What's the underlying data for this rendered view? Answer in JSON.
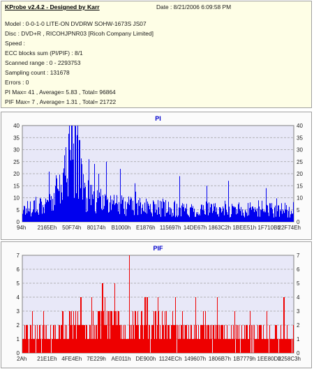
{
  "header": {
    "app_title": "KProbe v2.4.2 - Designed by Karr",
    "date": "Date : 8/21/2006 6:09:58 PM"
  },
  "info_lines": [
    "Model : 0-0-1-0 LITE-ON DVDRW SOHW-1673S JS07",
    "Disc : DVD+R , RICOHJPNR03 [Ricoh Company Limited]",
    "Speed :",
    "ECC blocks sum (PI/PIF) : 8/1",
    "Scanned range : 0 - 2293753",
    "Sampling count : 131678",
    "Errors : 0",
    "PI Max= 41 , Average= 5.83 , Total= 96864",
    "PIF Max= 7 , Average= 1.31 , Total= 21722"
  ],
  "colors": {
    "pi_series": "#0000ee",
    "pif_series": "#ee0000",
    "title": "#0000cc",
    "grid": "#a0a0a0",
    "plot_background": "#e8e8f8",
    "panel_background": "#fbfbfb",
    "info_background": "#fefee6"
  },
  "chart_data": [
    {
      "type": "bar",
      "title": "PI",
      "ylim": [
        0,
        40
      ],
      "yticks": [
        0,
        5,
        10,
        15,
        20,
        25,
        30,
        35,
        40
      ],
      "xticks": [
        "94h",
        "2165Eh",
        "50F74h",
        "80174h",
        "B1000h",
        "E1876h",
        "115697h",
        "14DE67h",
        "1863C2h",
        "1BEE51h",
        "1F710Bh",
        "22F74Eh"
      ],
      "grid": true,
      "max": 41,
      "average": 5.83,
      "total": 96864,
      "series_color": "#0000ee",
      "sample_count": 131678,
      "profile": [
        {
          "pos": 0.0,
          "level": 5
        },
        {
          "pos": 0.05,
          "level": 7
        },
        {
          "pos": 0.1,
          "level": 8
        },
        {
          "pos": 0.15,
          "level": 16
        },
        {
          "pos": 0.18,
          "level": 27
        },
        {
          "pos": 0.2,
          "level": 25
        },
        {
          "pos": 0.23,
          "level": 12
        },
        {
          "pos": 0.26,
          "level": 9
        },
        {
          "pos": 0.3,
          "level": 8
        },
        {
          "pos": 0.35,
          "level": 7
        },
        {
          "pos": 0.45,
          "level": 6
        },
        {
          "pos": 0.6,
          "level": 5
        },
        {
          "pos": 0.8,
          "level": 5
        },
        {
          "pos": 1.0,
          "level": 5
        }
      ],
      "peaks": [
        {
          "pos": 0.172,
          "value": 41
        },
        {
          "pos": 0.18,
          "value": 40
        },
        {
          "pos": 0.2,
          "value": 36
        },
        {
          "pos": 0.16,
          "value": 31
        },
        {
          "pos": 0.21,
          "value": 34
        },
        {
          "pos": 0.245,
          "value": 26
        },
        {
          "pos": 0.31,
          "value": 25
        },
        {
          "pos": 0.36,
          "value": 22
        },
        {
          "pos": 0.28,
          "value": 20
        },
        {
          "pos": 0.415,
          "value": 16
        },
        {
          "pos": 0.58,
          "value": 19
        },
        {
          "pos": 0.76,
          "value": 17
        },
        {
          "pos": 0.68,
          "value": 15
        },
        {
          "pos": 0.9,
          "value": 14
        }
      ]
    },
    {
      "type": "bar",
      "title": "PIF",
      "ylim": [
        0,
        7
      ],
      "yticks": [
        0,
        1,
        2,
        3,
        4,
        5,
        6,
        7
      ],
      "xticks": [
        "2Ah",
        "21E1Eh",
        "4FE4Eh",
        "7E229h",
        "AE011h",
        "DE900h",
        "1124ECh",
        "149607h",
        "1806B7h",
        "1B7779h",
        "1EE80Dh",
        "2258C3h"
      ],
      "grid": true,
      "max": 7,
      "average": 1.31,
      "total": 21722,
      "series_color": "#ee0000",
      "sample_count": 131678,
      "profile": [
        {
          "pos": 0.0,
          "level": 1.0
        },
        {
          "pos": 0.1,
          "level": 1.2
        },
        {
          "pos": 0.2,
          "level": 1.6
        },
        {
          "pos": 0.3,
          "level": 1.9
        },
        {
          "pos": 0.4,
          "level": 1.7
        },
        {
          "pos": 0.5,
          "level": 1.5
        },
        {
          "pos": 0.6,
          "level": 1.3
        },
        {
          "pos": 0.7,
          "level": 1.3
        },
        {
          "pos": 0.8,
          "level": 1.2
        },
        {
          "pos": 0.9,
          "level": 1.1
        },
        {
          "pos": 1.0,
          "level": 1.0
        }
      ],
      "peaks": [
        {
          "pos": 0.395,
          "value": 7
        },
        {
          "pos": 0.295,
          "value": 5
        },
        {
          "pos": 0.34,
          "value": 5
        },
        {
          "pos": 0.215,
          "value": 4
        },
        {
          "pos": 0.255,
          "value": 4
        },
        {
          "pos": 0.46,
          "value": 4
        },
        {
          "pos": 0.5,
          "value": 4
        },
        {
          "pos": 0.565,
          "value": 4
        },
        {
          "pos": 0.64,
          "value": 4
        },
        {
          "pos": 0.72,
          "value": 4
        },
        {
          "pos": 0.965,
          "value": 4
        },
        {
          "pos": 0.15,
          "value": 3
        }
      ]
    }
  ]
}
